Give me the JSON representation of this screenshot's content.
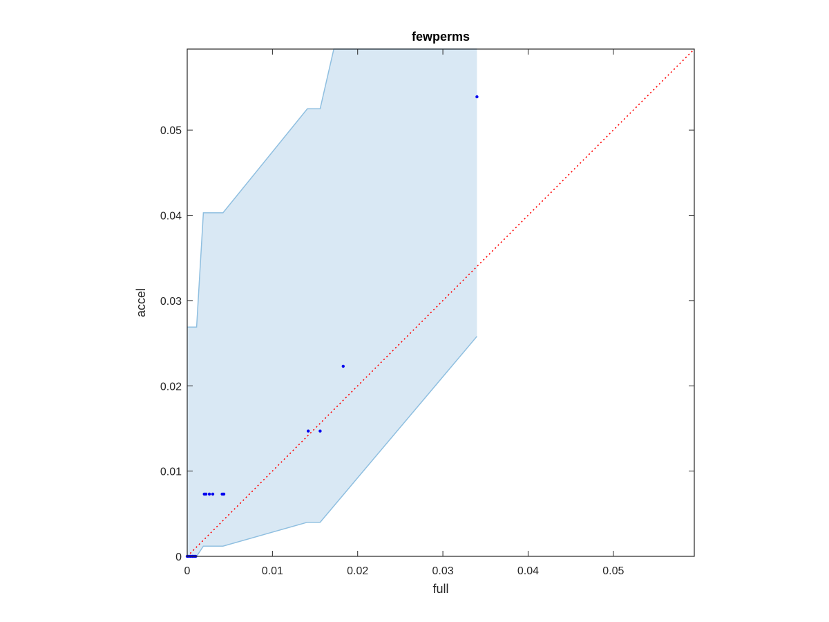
{
  "chart_data": {
    "type": "scatter",
    "title": "fewperms",
    "xlabel": "full",
    "ylabel": "accel",
    "xlim": [
      0,
      0.0595
    ],
    "ylim": [
      0,
      0.0595
    ],
    "xticks": [
      0,
      0.01,
      0.02,
      0.03,
      0.04,
      0.05
    ],
    "yticks": [
      0,
      0.01,
      0.02,
      0.03,
      0.04,
      0.05
    ],
    "xtick_labels": [
      "0",
      "0.01",
      "0.02",
      "0.03",
      "0.04",
      "0.05"
    ],
    "ytick_labels": [
      "0",
      "0.01",
      "0.02",
      "0.03",
      "0.04",
      "0.05"
    ],
    "grid": false,
    "colors": {
      "points": "#0000ee",
      "band_fill": "#d9e8f4",
      "band_edge": "#8fbfe0",
      "diagonal": "#ff0000",
      "axes": "#262626"
    },
    "points": [
      {
        "x": 0.0,
        "y": 0.0
      },
      {
        "x": 0.0002,
        "y": 0.0
      },
      {
        "x": 0.0004,
        "y": 0.0
      },
      {
        "x": 0.0006,
        "y": 0.0
      },
      {
        "x": 0.0008,
        "y": 0.0
      },
      {
        "x": 0.001,
        "y": 0.0
      },
      {
        "x": 0.002,
        "y": 0.0073
      },
      {
        "x": 0.0022,
        "y": 0.0073
      },
      {
        "x": 0.0026,
        "y": 0.0073
      },
      {
        "x": 0.003,
        "y": 0.0073
      },
      {
        "x": 0.0041,
        "y": 0.0073
      },
      {
        "x": 0.0043,
        "y": 0.0073
      },
      {
        "x": 0.0142,
        "y": 0.0147
      },
      {
        "x": 0.0156,
        "y": 0.0147
      },
      {
        "x": 0.0183,
        "y": 0.0223
      },
      {
        "x": 0.034,
        "y": 0.0539
      }
    ],
    "band_upper": [
      {
        "x": 0.0,
        "y": 0.0269
      },
      {
        "x": 0.0011,
        "y": 0.0269
      },
      {
        "x": 0.0019,
        "y": 0.0403
      },
      {
        "x": 0.0042,
        "y": 0.0403
      },
      {
        "x": 0.0141,
        "y": 0.0525
      },
      {
        "x": 0.0156,
        "y": 0.0525
      },
      {
        "x": 0.0172,
        "y": 0.0595
      },
      {
        "x": 0.034,
        "y": 0.0595
      }
    ],
    "band_lower": [
      {
        "x": 0.034,
        "y": 0.0258
      },
      {
        "x": 0.0156,
        "y": 0.004
      },
      {
        "x": 0.0141,
        "y": 0.004
      },
      {
        "x": 0.0042,
        "y": 0.0012
      },
      {
        "x": 0.0019,
        "y": 0.0012
      },
      {
        "x": 0.0011,
        "y": 0.0
      },
      {
        "x": 0.0,
        "y": 0.0
      }
    ],
    "diagonal": [
      [
        0,
        0
      ],
      [
        0.0595,
        0.0595
      ]
    ]
  }
}
